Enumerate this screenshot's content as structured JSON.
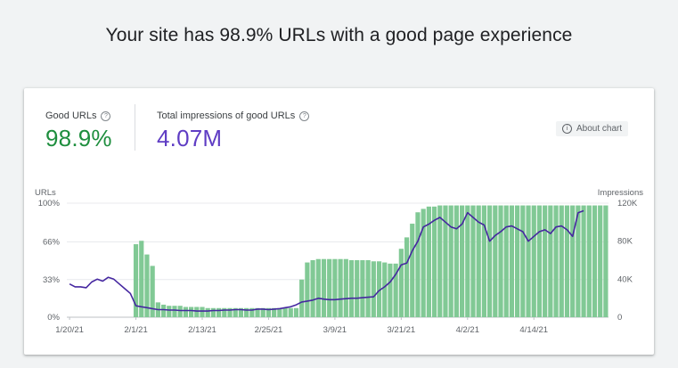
{
  "headline": "Your site has 98.9% URLs with a good page experience",
  "metrics": {
    "good_urls": {
      "label": "Good URLs",
      "value": "98.9%",
      "color": "#1e8e3e"
    },
    "impressions": {
      "label": "Total impressions of good URLs",
      "value": "4.07M",
      "color": "#5f3dc4"
    }
  },
  "about_chart": "About chart",
  "chart_data": {
    "type": "bar",
    "left_axis": {
      "label": "URLs",
      "ticks": [
        "100%",
        "66%",
        "33%",
        "0%"
      ],
      "ylim": [
        0,
        100
      ],
      "tick_values": [
        100,
        66,
        33,
        0
      ]
    },
    "right_axis": {
      "label": "Impressions",
      "ticks": [
        "120K",
        "80K",
        "40K",
        "0"
      ],
      "ylim": [
        0,
        120000
      ],
      "tick_values": [
        120000,
        80000,
        40000,
        0
      ]
    },
    "x_ticks": [
      "1/20/21",
      "2/1/21",
      "2/13/21",
      "2/25/21",
      "3/9/21",
      "3/21/21",
      "4/2/21",
      "4/14/21"
    ],
    "x_tick_day_index": [
      0,
      12,
      24,
      36,
      48,
      60,
      72,
      84
    ],
    "colors": {
      "bars": "#81c995",
      "line": "#4527a0",
      "grid": "#e8eaed"
    },
    "series": [
      {
        "name": "Good URLs",
        "kind": "bar",
        "values": [
          0,
          0,
          0,
          0,
          0,
          0,
          0,
          0,
          0,
          0,
          0,
          0,
          64,
          67,
          55,
          45,
          13,
          11,
          10,
          10,
          10,
          9,
          9,
          9,
          9,
          8,
          8,
          8,
          8,
          8,
          8,
          8,
          8,
          8,
          8,
          8,
          8,
          8,
          8,
          8,
          8,
          8,
          33,
          48,
          50,
          51,
          51,
          51,
          51,
          51,
          51,
          50,
          50,
          50,
          50,
          49,
          49,
          48,
          47,
          47,
          60,
          70,
          82,
          92,
          95,
          97,
          97,
          98,
          98,
          98,
          98,
          98,
          98,
          98,
          98,
          98,
          98,
          98,
          98,
          98,
          98,
          98,
          98,
          98,
          98,
          98,
          98,
          98,
          98,
          98,
          98,
          98,
          98,
          98,
          98,
          98,
          98,
          98
        ]
      },
      {
        "name": "Impressions",
        "kind": "line",
        "values": [
          35000,
          32000,
          32000,
          31000,
          37000,
          40000,
          38000,
          42000,
          40000,
          35000,
          30000,
          25000,
          12000,
          11000,
          10000,
          9000,
          8000,
          8000,
          7500,
          7500,
          7000,
          7000,
          7000,
          6500,
          6500,
          6500,
          7000,
          7000,
          7500,
          7500,
          8000,
          8000,
          7500,
          7500,
          8500,
          8500,
          8000,
          8500,
          9000,
          10000,
          11000,
          13000,
          16000,
          17000,
          18000,
          20000,
          19000,
          18500,
          18500,
          19000,
          19500,
          20000,
          20000,
          20500,
          21000,
          21500,
          28000,
          32000,
          37000,
          45000,
          55000,
          57000,
          70000,
          80000,
          95000,
          98000,
          102000,
          105000,
          100000,
          95000,
          93000,
          98000,
          110000,
          105000,
          100000,
          97000,
          80000,
          86000,
          90000,
          95000,
          96000,
          93000,
          90000,
          80000,
          85000,
          90000,
          92000,
          88000,
          95000,
          96000,
          92000,
          85000,
          110000,
          112000
        ]
      }
    ]
  }
}
